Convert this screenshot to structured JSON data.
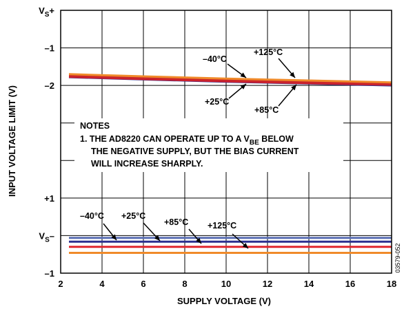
{
  "chart_data": {
    "type": "line",
    "xlabel": "SUPPLY VOLTAGE (V)",
    "ylabel": "INPUT VOLTAGE LIMIT (V)",
    "xlim": [
      2,
      18
    ],
    "x_ticks": [
      "2",
      "4",
      "6",
      "8",
      "10",
      "12",
      "14",
      "16",
      "18"
    ],
    "y_ticks": [
      {
        "label": "V",
        "sub": "S",
        "suffix": "+",
        "pos": 0
      },
      {
        "label": "–1",
        "sub": "",
        "suffix": "",
        "pos": 1
      },
      {
        "label": "–2",
        "sub": "",
        "suffix": "",
        "pos": 2
      },
      {
        "label": "+1",
        "sub": "",
        "suffix": "",
        "pos": 5
      },
      {
        "label": "V",
        "sub": "S",
        "suffix": "–",
        "pos": 6
      },
      {
        "label": "–1",
        "sub": "",
        "suffix": "",
        "pos": 7
      }
    ],
    "grid": true,
    "upper_panel": {
      "reference": "VS+",
      "series": [
        {
          "name": "–40°C",
          "color": "#2b2f8f",
          "x": [
            2.4,
            6,
            10,
            14,
            18
          ],
          "y": [
            -1.78,
            -1.84,
            -1.9,
            -1.95,
            -2.0
          ]
        },
        {
          "name": "+25°C",
          "color": "#d0202e",
          "x": [
            2.4,
            6,
            10,
            14,
            18
          ],
          "y": [
            -1.77,
            -1.83,
            -1.89,
            -1.94,
            -1.98
          ]
        },
        {
          "name": "+85°C",
          "color": "#c8262a",
          "x": [
            2.4,
            6,
            10,
            14,
            18
          ],
          "y": [
            -1.74,
            -1.8,
            -1.86,
            -1.91,
            -1.96
          ]
        },
        {
          "name": "+125°C",
          "color": "#f08a2a",
          "x": [
            2.4,
            6,
            10,
            14,
            18
          ],
          "y": [
            -1.7,
            -1.76,
            -1.82,
            -1.87,
            -1.92
          ]
        }
      ]
    },
    "lower_panel": {
      "reference": "VS–",
      "series": [
        {
          "name": "–40°C",
          "color": "#5a6fb4",
          "x": [
            2.4,
            18
          ],
          "y": [
            -0.06,
            -0.06
          ]
        },
        {
          "name": "+25°C",
          "color": "#2b2f8f",
          "x": [
            2.4,
            18
          ],
          "y": [
            -0.16,
            -0.16
          ]
        },
        {
          "name": "+85°C",
          "color": "#e0262e",
          "x": [
            2.4,
            18
          ],
          "y": [
            -0.3,
            -0.3
          ]
        },
        {
          "name": "+125°C",
          "color": "#f08a2a",
          "x": [
            2.4,
            18
          ],
          "y": [
            -0.46,
            -0.46
          ]
        }
      ]
    },
    "annotations": [
      {
        "text": "–40°C"
      },
      {
        "text": "+125°C"
      },
      {
        "text": "+25°C"
      },
      {
        "text": "+85°C"
      },
      {
        "text": "–40°C"
      },
      {
        "text": "+25°C"
      },
      {
        "text": "+85°C"
      },
      {
        "text": "+125°C"
      }
    ],
    "notes": {
      "title": "NOTES",
      "line1_a": "1. THE AD8220 CAN OPERATE UP TO A V",
      "line1_sub": "BE",
      "line1_b": " BELOW",
      "line2": "THE NEGATIVE SUPPLY, BUT THE BIAS CURRENT",
      "line3": "WILL INCREASE SHARPLY."
    },
    "figure_id": "03579-052"
  }
}
